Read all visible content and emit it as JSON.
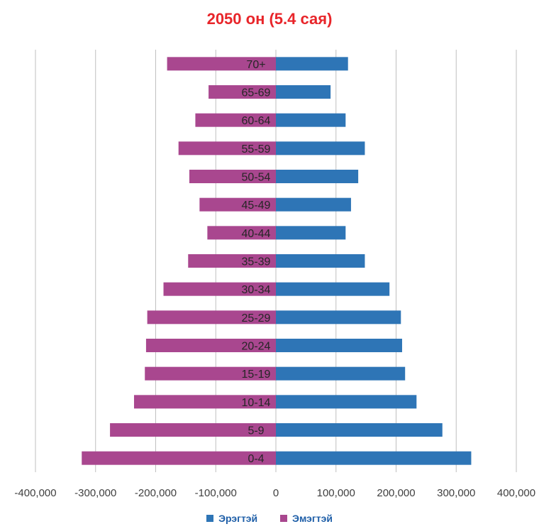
{
  "chart_data": {
    "type": "bar",
    "orientation": "horizontal",
    "subtype": "population-pyramid",
    "title": "2050 он (5.4 сая)",
    "title_color": "#e8252a",
    "categories": [
      "0-4",
      "5-9",
      "10-14",
      "15-19",
      "20-24",
      "25-29",
      "30-34",
      "35-39",
      "40-44",
      "45-49",
      "50-54",
      "55-59",
      "60-64",
      "65-69",
      "70+"
    ],
    "series": [
      {
        "name": "Эрэгтэй",
        "color": "#2e75b6",
        "values": [
          325000,
          277000,
          234000,
          215000,
          210000,
          208000,
          189000,
          148000,
          116000,
          125000,
          137000,
          148000,
          116000,
          91000,
          120000
        ]
      },
      {
        "name": "Эмэгтэй",
        "color": "#a9478f",
        "values": [
          -323000,
          -276000,
          -236000,
          -218000,
          -216000,
          -214000,
          -187000,
          -146000,
          -114000,
          -127000,
          -144000,
          -162000,
          -134000,
          -112000,
          -181000
        ]
      }
    ],
    "xlim": [
      -400000,
      400000
    ],
    "xticks": [
      -400000,
      -300000,
      -200000,
      -100000,
      0,
      100000,
      200000,
      300000,
      400000
    ],
    "xtick_labels": [
      "-400,000",
      "-300,000",
      "-200,000",
      "-100,000",
      "0",
      "100,000",
      "200,000",
      "300,000",
      "400,000"
    ],
    "grid": "vertical",
    "legend_position": "bottom",
    "legend_color": "#1f5fa8"
  }
}
